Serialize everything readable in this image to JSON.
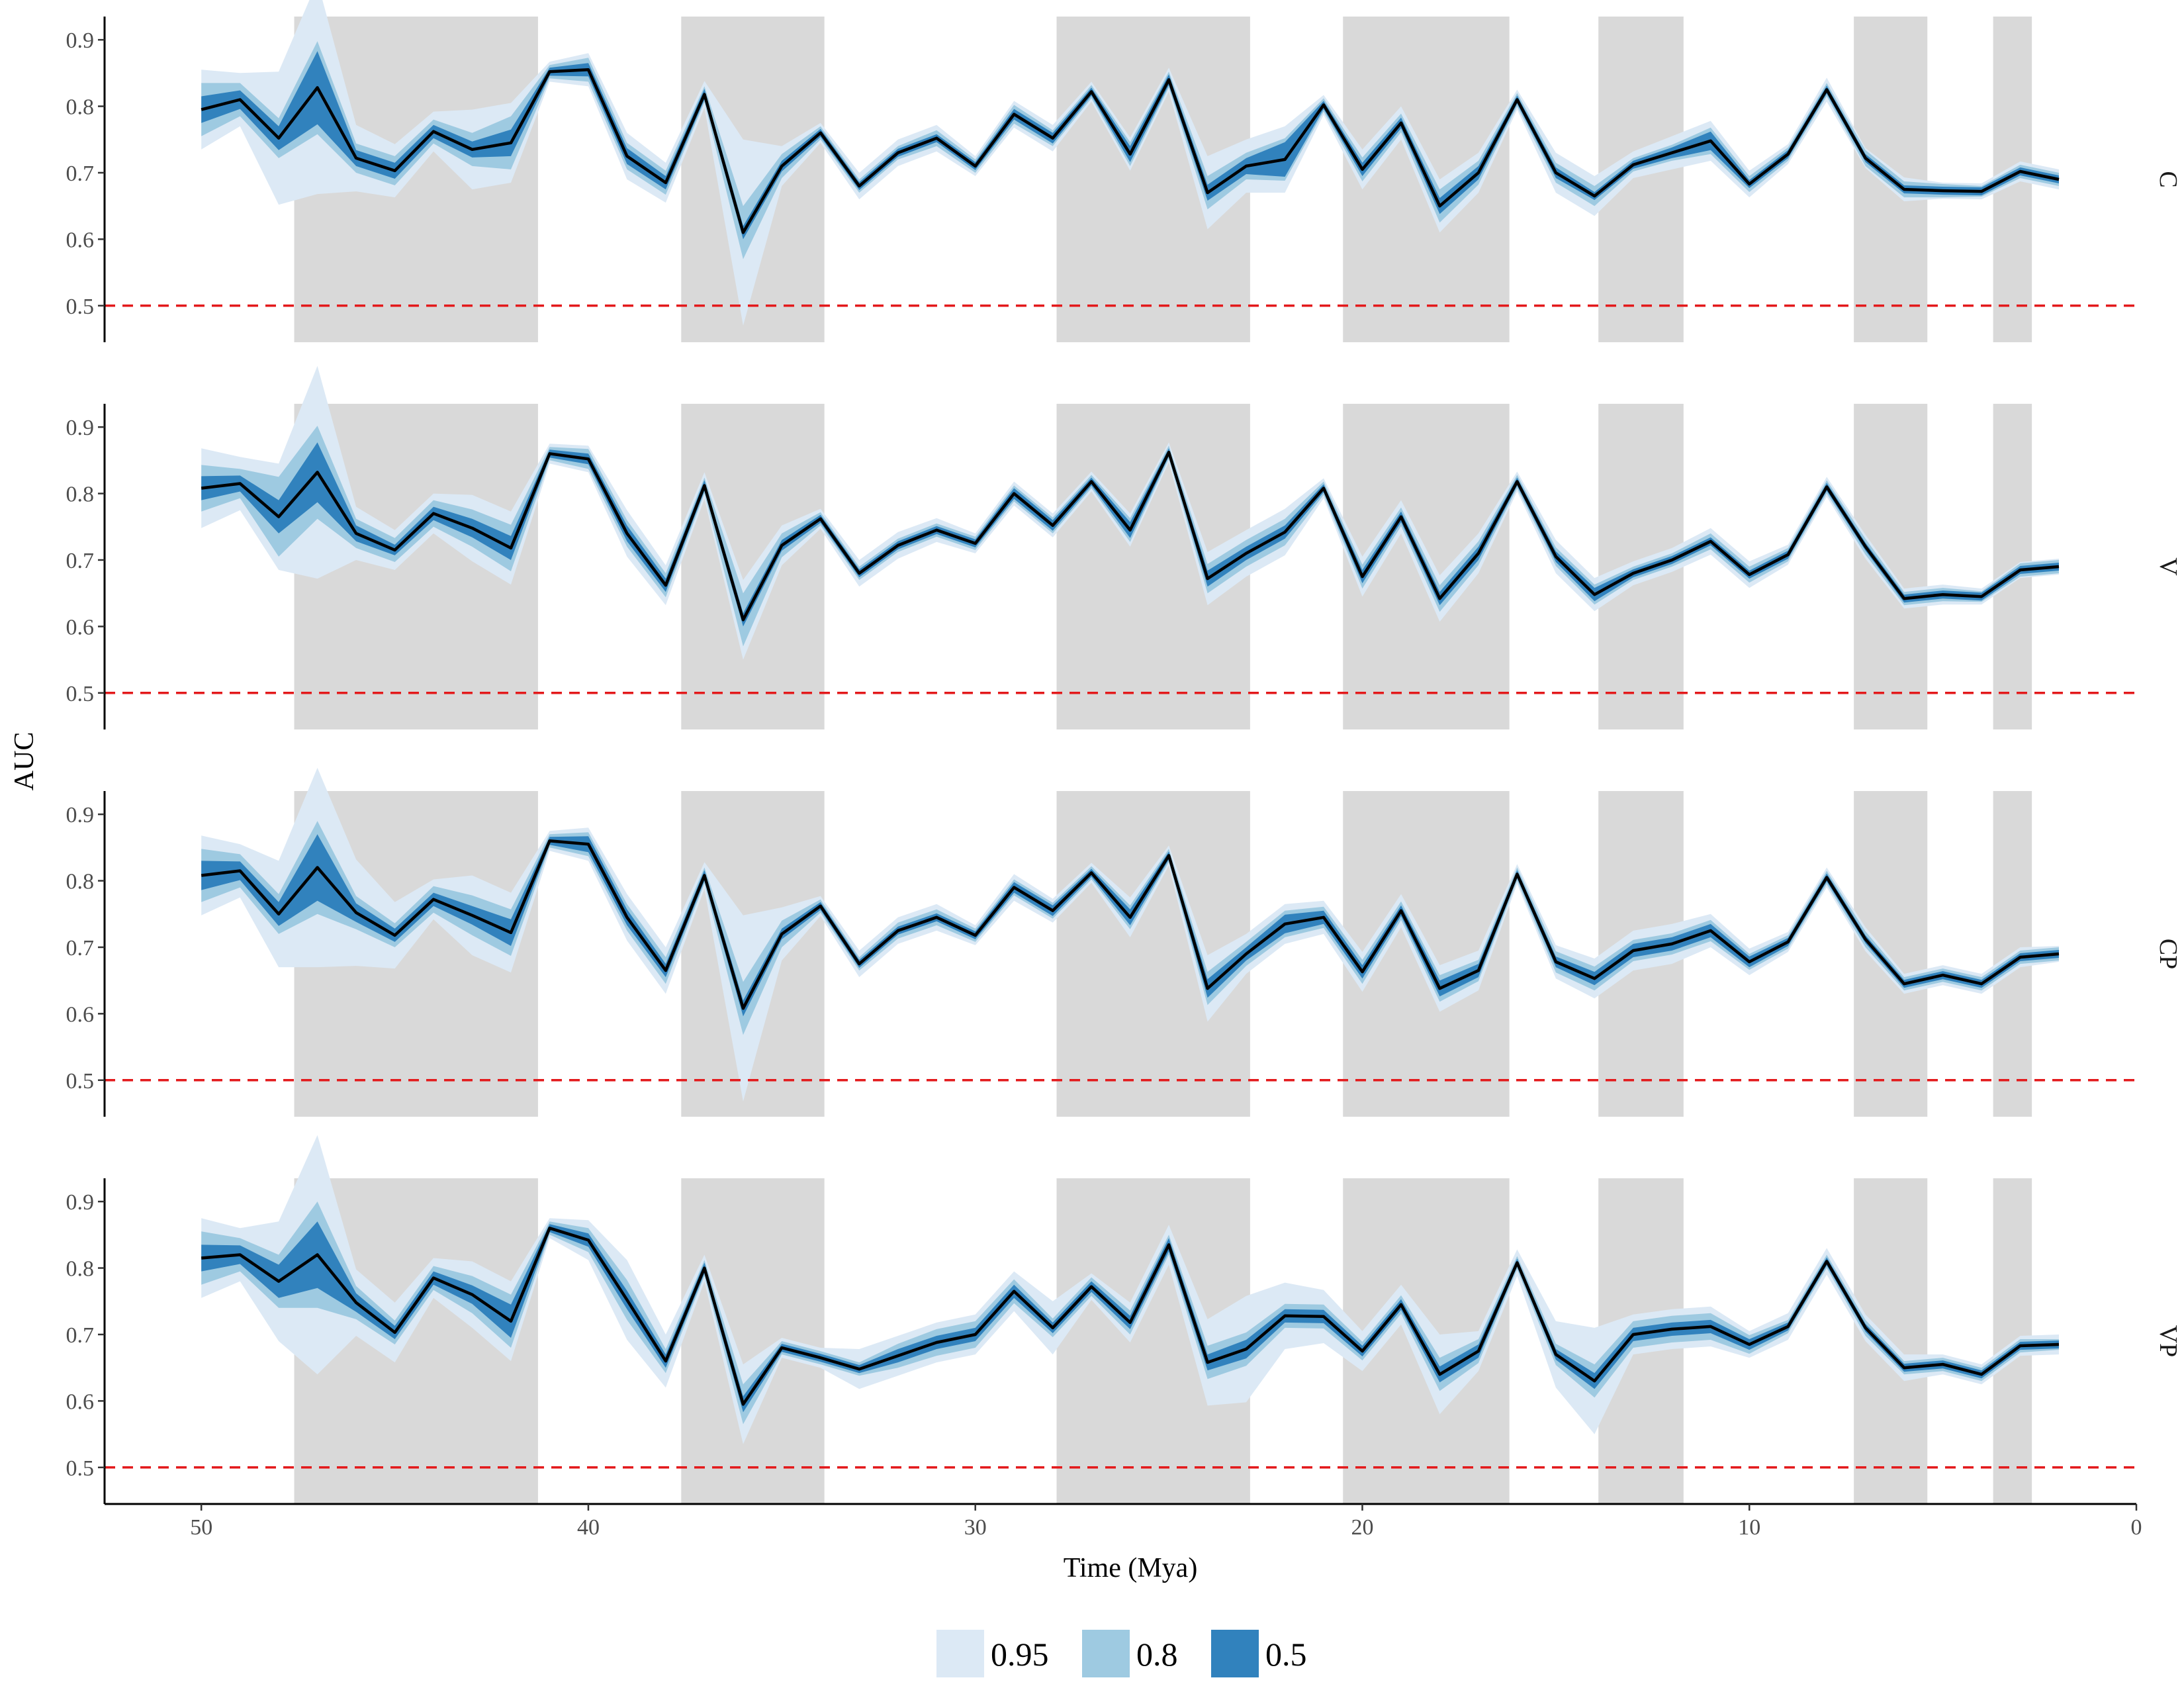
{
  "chart_data": {
    "type": "area",
    "xlabel": "Time (Mya)",
    "ylabel": "AUC",
    "x_reversed": true,
    "xlim": [
      52.5,
      0
    ],
    "ylim": [
      0.445,
      0.935
    ],
    "x_ticks": [
      50,
      40,
      30,
      20,
      10,
      0
    ],
    "y_ticks": [
      0.5,
      0.6,
      0.7,
      0.8,
      0.9
    ],
    "y_tick_labels": [
      "0.5",
      "0.6",
      "0.7",
      "0.8",
      "0.9"
    ],
    "reference_line": {
      "y": 0.5,
      "style": "dashed",
      "color": "#e31a1c"
    },
    "shaded_intervals": [
      [
        47.6,
        41.3
      ],
      [
        37.6,
        33.9
      ],
      [
        27.9,
        22.9
      ],
      [
        20.5,
        16.2
      ],
      [
        13.9,
        11.7
      ],
      [
        7.3,
        5.4
      ],
      [
        3.7,
        2.7
      ]
    ],
    "legend": {
      "placement": "bottom",
      "entries": [
        {
          "label": "0.95",
          "color": "#dce9f5"
        },
        {
          "label": "0.8",
          "color": "#9ecae1"
        },
        {
          "label": "0.5",
          "color": "#3182bd"
        }
      ]
    },
    "colors": {
      "line": "#000000",
      "shade": "#d9d9d9"
    },
    "x": [
      50,
      49,
      48,
      47,
      46,
      45,
      44,
      43,
      42,
      41,
      40,
      39,
      38,
      37,
      36,
      35,
      34,
      33,
      32,
      31,
      30,
      29,
      28,
      27,
      26,
      25,
      24,
      23,
      22,
      21,
      20,
      19,
      18,
      17,
      16,
      15,
      14,
      13,
      12,
      11,
      10,
      9,
      8,
      7,
      6,
      5,
      4,
      3,
      2
    ],
    "panels": [
      {
        "strip": "C",
        "median": [
          0.795,
          0.81,
          0.752,
          0.828,
          0.722,
          0.703,
          0.762,
          0.735,
          0.745,
          0.852,
          0.855,
          0.725,
          0.685,
          0.818,
          0.61,
          0.71,
          0.76,
          0.68,
          0.73,
          0.752,
          0.71,
          0.788,
          0.752,
          0.822,
          0.728,
          0.84,
          0.67,
          0.71,
          0.72,
          0.802,
          0.705,
          0.775,
          0.65,
          0.7,
          0.81,
          0.7,
          0.665,
          0.712,
          0.73,
          0.748,
          0.683,
          0.728,
          0.825,
          0.722,
          0.675,
          0.673,
          0.672,
          0.702,
          0.69
        ],
        "w50": [
          0.02,
          0.014,
          0.018,
          0.055,
          0.012,
          0.012,
          0.01,
          0.012,
          0.02,
          0.006,
          0.01,
          0.012,
          0.01,
          0.008,
          0.01,
          0.008,
          0.006,
          0.006,
          0.006,
          0.006,
          0.006,
          0.008,
          0.008,
          0.006,
          0.012,
          0.008,
          0.012,
          0.012,
          0.026,
          0.006,
          0.01,
          0.008,
          0.012,
          0.01,
          0.006,
          0.008,
          0.006,
          0.006,
          0.008,
          0.014,
          0.006,
          0.006,
          0.006,
          0.006,
          0.006,
          0.006,
          0.006,
          0.006,
          0.006
        ],
        "w80": [
          0.04,
          0.025,
          0.03,
          0.07,
          0.022,
          0.022,
          0.018,
          0.025,
          0.04,
          0.01,
          0.018,
          0.02,
          0.018,
          0.012,
          0.04,
          0.018,
          0.01,
          0.01,
          0.01,
          0.012,
          0.01,
          0.014,
          0.012,
          0.01,
          0.018,
          0.012,
          0.025,
          0.02,
          0.032,
          0.01,
          0.018,
          0.014,
          0.025,
          0.018,
          0.01,
          0.015,
          0.015,
          0.01,
          0.012,
          0.02,
          0.012,
          0.01,
          0.01,
          0.012,
          0.012,
          0.01,
          0.008,
          0.01,
          0.01
        ],
        "w95": [
          0.06,
          0.04,
          0.1,
          0.16,
          0.05,
          0.04,
          0.03,
          0.06,
          0.06,
          0.015,
          0.025,
          0.035,
          0.03,
          0.02,
          0.14,
          0.03,
          0.015,
          0.02,
          0.02,
          0.02,
          0.015,
          0.02,
          0.02,
          0.015,
          0.025,
          0.018,
          0.055,
          0.04,
          0.05,
          0.015,
          0.03,
          0.025,
          0.04,
          0.03,
          0.015,
          0.03,
          0.03,
          0.02,
          0.025,
          0.03,
          0.02,
          0.015,
          0.018,
          0.015,
          0.018,
          0.012,
          0.012,
          0.015,
          0.015
        ]
      },
      {
        "strip": "V",
        "median": [
          0.808,
          0.815,
          0.765,
          0.832,
          0.74,
          0.715,
          0.77,
          0.748,
          0.718,
          0.86,
          0.852,
          0.74,
          0.662,
          0.812,
          0.61,
          0.722,
          0.762,
          0.68,
          0.722,
          0.745,
          0.725,
          0.8,
          0.752,
          0.818,
          0.745,
          0.862,
          0.672,
          0.71,
          0.742,
          0.808,
          0.675,
          0.765,
          0.642,
          0.71,
          0.818,
          0.705,
          0.648,
          0.68,
          0.7,
          0.728,
          0.678,
          0.708,
          0.81,
          0.72,
          0.642,
          0.648,
          0.645,
          0.685,
          0.69
        ],
        "w50": [
          0.018,
          0.012,
          0.025,
          0.045,
          0.012,
          0.008,
          0.01,
          0.014,
          0.018,
          0.006,
          0.008,
          0.012,
          0.01,
          0.008,
          0.01,
          0.008,
          0.006,
          0.006,
          0.006,
          0.006,
          0.006,
          0.008,
          0.008,
          0.006,
          0.012,
          0.006,
          0.012,
          0.01,
          0.01,
          0.006,
          0.01,
          0.008,
          0.01,
          0.01,
          0.006,
          0.008,
          0.01,
          0.006,
          0.006,
          0.006,
          0.006,
          0.006,
          0.006,
          0.006,
          0.006,
          0.006,
          0.006,
          0.006,
          0.006
        ],
        "w80": [
          0.035,
          0.022,
          0.06,
          0.07,
          0.022,
          0.018,
          0.02,
          0.028,
          0.035,
          0.01,
          0.015,
          0.02,
          0.018,
          0.012,
          0.04,
          0.018,
          0.01,
          0.01,
          0.01,
          0.01,
          0.01,
          0.012,
          0.012,
          0.01,
          0.018,
          0.01,
          0.022,
          0.02,
          0.02,
          0.01,
          0.018,
          0.014,
          0.02,
          0.018,
          0.01,
          0.014,
          0.015,
          0.01,
          0.01,
          0.012,
          0.012,
          0.01,
          0.01,
          0.012,
          0.01,
          0.01,
          0.008,
          0.01,
          0.01
        ],
        "w95": [
          0.06,
          0.04,
          0.08,
          0.16,
          0.04,
          0.03,
          0.03,
          0.05,
          0.055,
          0.015,
          0.02,
          0.035,
          0.03,
          0.02,
          0.06,
          0.03,
          0.015,
          0.02,
          0.02,
          0.018,
          0.015,
          0.018,
          0.018,
          0.015,
          0.025,
          0.015,
          0.04,
          0.035,
          0.035,
          0.015,
          0.03,
          0.025,
          0.035,
          0.03,
          0.015,
          0.025,
          0.025,
          0.018,
          0.018,
          0.02,
          0.02,
          0.015,
          0.015,
          0.018,
          0.015,
          0.015,
          0.012,
          0.012,
          0.012
        ]
      },
      {
        "strip": "CP",
        "median": [
          0.808,
          0.815,
          0.75,
          0.82,
          0.752,
          0.718,
          0.772,
          0.748,
          0.722,
          0.86,
          0.855,
          0.745,
          0.665,
          0.808,
          0.608,
          0.72,
          0.762,
          0.675,
          0.725,
          0.745,
          0.718,
          0.79,
          0.755,
          0.812,
          0.745,
          0.838,
          0.638,
          0.69,
          0.735,
          0.745,
          0.663,
          0.755,
          0.638,
          0.665,
          0.81,
          0.678,
          0.653,
          0.695,
          0.705,
          0.725,
          0.678,
          0.708,
          0.805,
          0.712,
          0.645,
          0.658,
          0.645,
          0.685,
          0.69
        ],
        "w50": [
          0.022,
          0.014,
          0.018,
          0.05,
          0.014,
          0.01,
          0.01,
          0.014,
          0.02,
          0.006,
          0.012,
          0.012,
          0.01,
          0.008,
          0.012,
          0.008,
          0.006,
          0.006,
          0.006,
          0.006,
          0.006,
          0.008,
          0.008,
          0.006,
          0.012,
          0.006,
          0.014,
          0.01,
          0.014,
          0.01,
          0.01,
          0.008,
          0.012,
          0.01,
          0.006,
          0.008,
          0.01,
          0.01,
          0.01,
          0.01,
          0.008,
          0.006,
          0.006,
          0.006,
          0.006,
          0.006,
          0.006,
          0.006,
          0.006
        ],
        "w80": [
          0.04,
          0.025,
          0.03,
          0.07,
          0.025,
          0.018,
          0.02,
          0.03,
          0.035,
          0.01,
          0.018,
          0.02,
          0.02,
          0.012,
          0.04,
          0.02,
          0.01,
          0.01,
          0.012,
          0.012,
          0.01,
          0.012,
          0.012,
          0.01,
          0.018,
          0.01,
          0.025,
          0.018,
          0.02,
          0.016,
          0.018,
          0.014,
          0.02,
          0.016,
          0.01,
          0.016,
          0.018,
          0.016,
          0.016,
          0.016,
          0.012,
          0.01,
          0.01,
          0.012,
          0.01,
          0.01,
          0.01,
          0.01,
          0.01
        ],
        "w95": [
          0.06,
          0.04,
          0.08,
          0.15,
          0.08,
          0.05,
          0.03,
          0.06,
          0.06,
          0.015,
          0.025,
          0.035,
          0.035,
          0.02,
          0.14,
          0.04,
          0.015,
          0.02,
          0.02,
          0.02,
          0.015,
          0.02,
          0.018,
          0.015,
          0.03,
          0.015,
          0.05,
          0.03,
          0.03,
          0.025,
          0.03,
          0.025,
          0.035,
          0.03,
          0.015,
          0.025,
          0.03,
          0.03,
          0.03,
          0.025,
          0.02,
          0.015,
          0.015,
          0.018,
          0.015,
          0.015,
          0.015,
          0.015,
          0.012
        ]
      },
      {
        "strip": "VP",
        "median": [
          0.815,
          0.82,
          0.78,
          0.82,
          0.748,
          0.703,
          0.785,
          0.76,
          0.72,
          0.86,
          0.842,
          0.752,
          0.66,
          0.8,
          0.595,
          0.68,
          0.665,
          0.648,
          0.668,
          0.688,
          0.7,
          0.765,
          0.71,
          0.772,
          0.718,
          0.835,
          0.658,
          0.678,
          0.728,
          0.727,
          0.675,
          0.745,
          0.64,
          0.675,
          0.808,
          0.67,
          0.63,
          0.7,
          0.708,
          0.712,
          0.685,
          0.712,
          0.81,
          0.71,
          0.65,
          0.655,
          0.64,
          0.683,
          0.685
        ],
        "w50": [
          0.02,
          0.014,
          0.025,
          0.05,
          0.014,
          0.01,
          0.01,
          0.014,
          0.025,
          0.006,
          0.01,
          0.014,
          0.01,
          0.008,
          0.012,
          0.006,
          0.006,
          0.006,
          0.01,
          0.01,
          0.01,
          0.01,
          0.008,
          0.008,
          0.01,
          0.01,
          0.012,
          0.014,
          0.01,
          0.01,
          0.008,
          0.008,
          0.012,
          0.01,
          0.006,
          0.008,
          0.012,
          0.01,
          0.01,
          0.01,
          0.008,
          0.006,
          0.006,
          0.006,
          0.006,
          0.006,
          0.006,
          0.006,
          0.006
        ],
        "w80": [
          0.04,
          0.025,
          0.04,
          0.08,
          0.025,
          0.018,
          0.018,
          0.028,
          0.04,
          0.01,
          0.018,
          0.03,
          0.018,
          0.012,
          0.03,
          0.01,
          0.01,
          0.01,
          0.018,
          0.02,
          0.02,
          0.018,
          0.014,
          0.014,
          0.018,
          0.015,
          0.025,
          0.025,
          0.018,
          0.018,
          0.014,
          0.014,
          0.025,
          0.018,
          0.01,
          0.016,
          0.025,
          0.02,
          0.02,
          0.02,
          0.014,
          0.01,
          0.01,
          0.012,
          0.01,
          0.01,
          0.01,
          0.01,
          0.008
        ],
        "w95": [
          0.06,
          0.04,
          0.09,
          0.18,
          0.05,
          0.045,
          0.03,
          0.05,
          0.06,
          0.015,
          0.03,
          0.06,
          0.04,
          0.02,
          0.06,
          0.015,
          0.015,
          0.03,
          0.03,
          0.03,
          0.03,
          0.03,
          0.04,
          0.02,
          0.03,
          0.03,
          0.065,
          0.08,
          0.05,
          0.04,
          0.03,
          0.03,
          0.06,
          0.03,
          0.02,
          0.05,
          0.08,
          0.03,
          0.03,
          0.03,
          0.02,
          0.02,
          0.02,
          0.02,
          0.02,
          0.015,
          0.015,
          0.015,
          0.015
        ]
      }
    ]
  }
}
